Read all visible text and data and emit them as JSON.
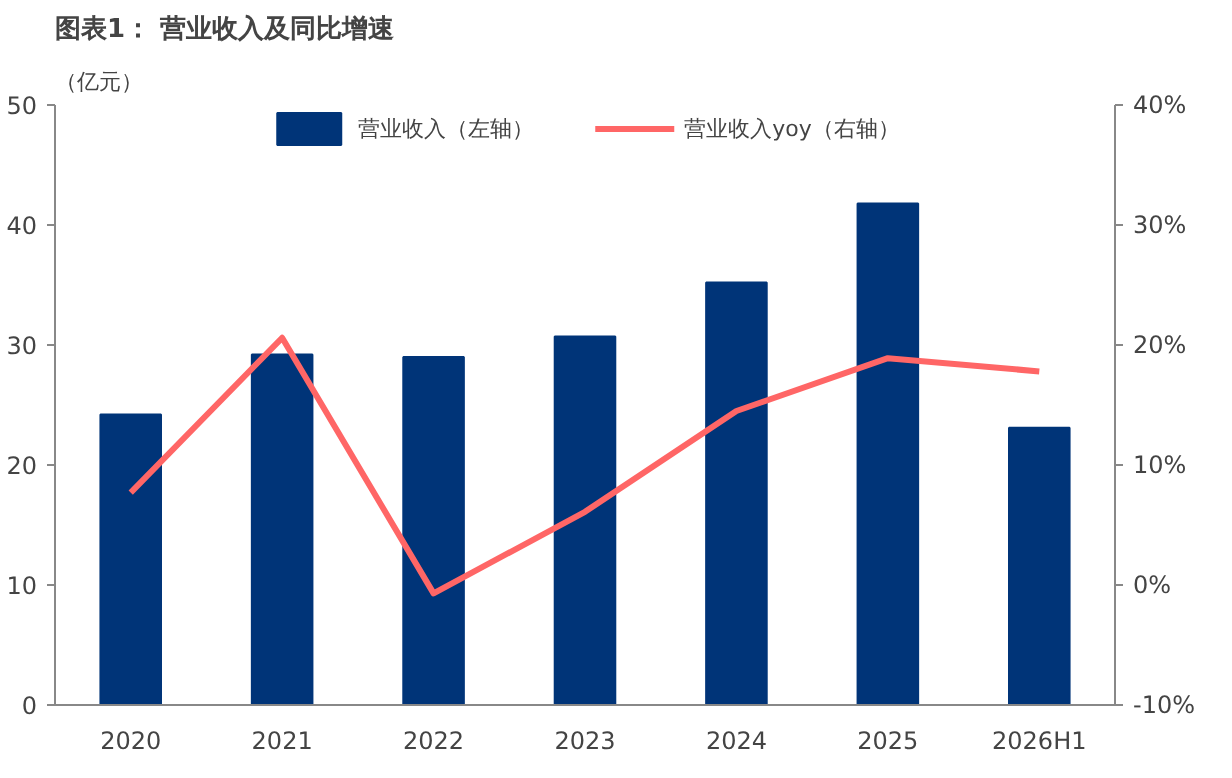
{
  "chart_data": {
    "type": "bar",
    "title": "图表1： 营业收入及同比增速",
    "ylabel": "（亿元）",
    "categories": [
      "2020",
      "2021",
      "2022",
      "2023",
      "2024",
      "2025",
      "2026H1"
    ],
    "series": [
      {
        "name": "营业收入（左轴）",
        "color": "#003478",
        "values": [
          24.2,
          29.2,
          29.0,
          30.7,
          35.2,
          41.8,
          23.1
        ]
      },
      {
        "name": "营业收入yoy（右轴）",
        "color": "#ff6666",
        "type": "line",
        "axis": "y2",
        "values": [
          7.7,
          20.6,
          -0.7,
          6.1,
          14.5,
          18.9,
          17.8
        ]
      }
    ],
    "ylim": [
      0,
      50
    ],
    "yticks": [
      0,
      10,
      20,
      30,
      40,
      50
    ],
    "y2lim": [
      -10,
      40
    ],
    "y2ticks": [
      {
        "value": -10,
        "label": "-10%"
      },
      {
        "value": 0,
        "label": "0%"
      },
      {
        "value": 10,
        "label": "10%"
      },
      {
        "value": 20,
        "label": "20%"
      },
      {
        "value": 30,
        "label": "30%"
      },
      {
        "value": 40,
        "label": "40%"
      }
    ],
    "legend": "top",
    "grid": false,
    "marker": "none",
    "line_style": "solid"
  }
}
